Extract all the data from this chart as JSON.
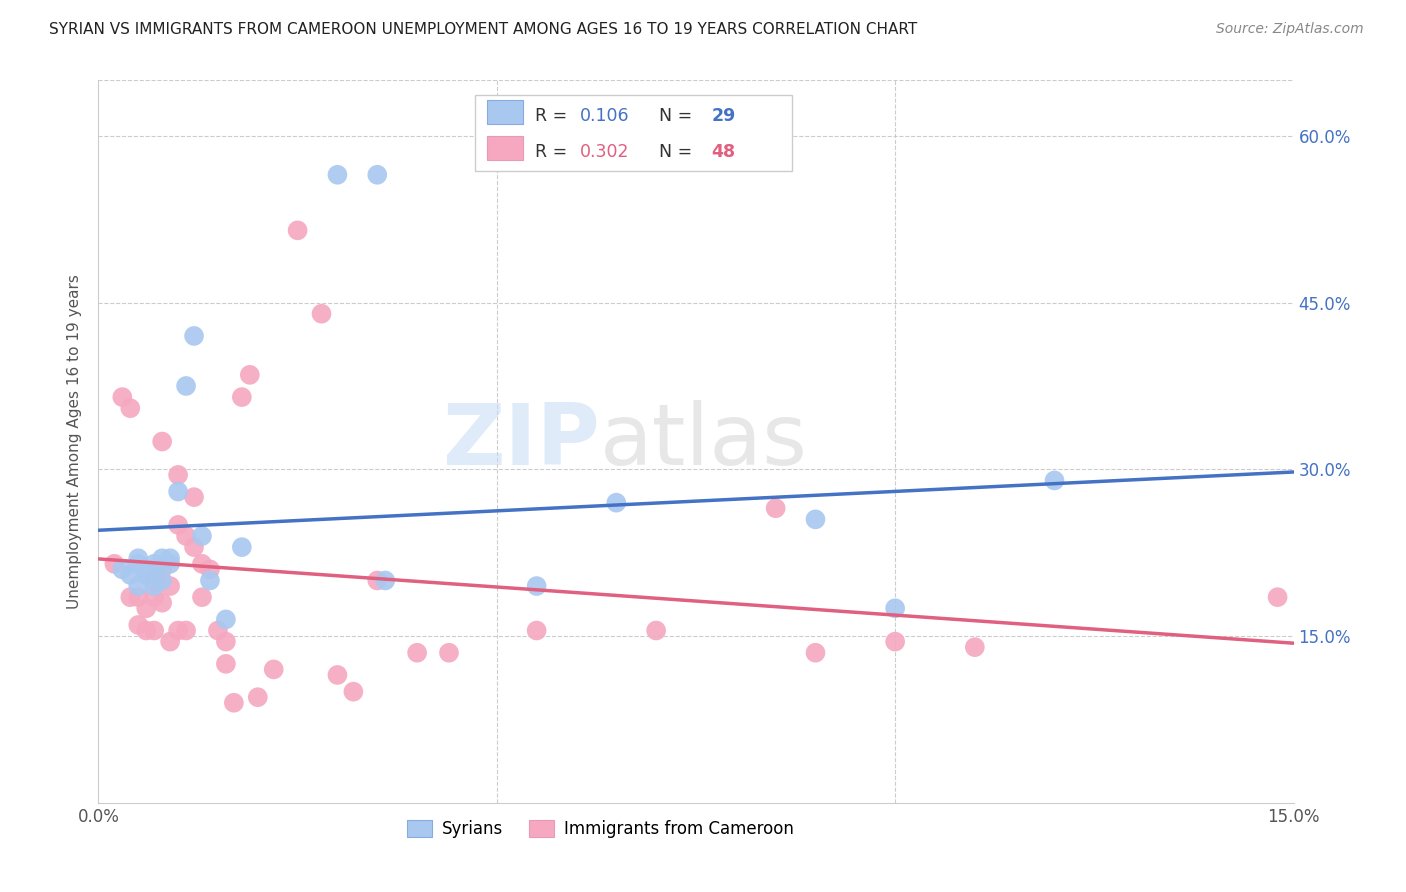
{
  "title": "SYRIAN VS IMMIGRANTS FROM CAMEROON UNEMPLOYMENT AMONG AGES 16 TO 19 YEARS CORRELATION CHART",
  "source": "Source: ZipAtlas.com",
  "ylabel": "Unemployment Among Ages 16 to 19 years",
  "xlim": [
    0.0,
    0.15
  ],
  "ylim": [
    0.0,
    0.65
  ],
  "watermark": "ZIPatlas",
  "legend_blue_r": "0.106",
  "legend_blue_n": "29",
  "legend_pink_r": "0.302",
  "legend_pink_n": "48",
  "legend_blue_label": "Syrians",
  "legend_pink_label": "Immigrants from Cameroon",
  "blue_color": "#A8C8F0",
  "pink_color": "#F5A8C0",
  "trendline_blue": "#4472C4",
  "trendline_pink": "#E06080",
  "background_color": "#FFFFFF",
  "grid_color": "#CCCCCC",
  "title_color": "#222222",
  "source_color": "#888888",
  "right_tick_color": "#4472C4",
  "blue_r_color": "#4472C4",
  "blue_n_color": "#4472C4",
  "pink_r_color": "#E06080",
  "pink_n_color": "#E06080",
  "blue_x": [
    0.003,
    0.004,
    0.005,
    0.005,
    0.005,
    0.006,
    0.006,
    0.007,
    0.007,
    0.007,
    0.008,
    0.008,
    0.009,
    0.009,
    0.01,
    0.011,
    0.012,
    0.013,
    0.014,
    0.016,
    0.018,
    0.03,
    0.035,
    0.036,
    0.055,
    0.065,
    0.09,
    0.1,
    0.12
  ],
  "blue_y": [
    0.21,
    0.205,
    0.195,
    0.215,
    0.22,
    0.205,
    0.21,
    0.195,
    0.21,
    0.215,
    0.22,
    0.2,
    0.215,
    0.22,
    0.28,
    0.375,
    0.42,
    0.24,
    0.2,
    0.165,
    0.23,
    0.565,
    0.565,
    0.2,
    0.195,
    0.27,
    0.255,
    0.175,
    0.29
  ],
  "pink_x": [
    0.002,
    0.003,
    0.004,
    0.004,
    0.005,
    0.005,
    0.006,
    0.006,
    0.007,
    0.007,
    0.007,
    0.008,
    0.008,
    0.008,
    0.009,
    0.009,
    0.01,
    0.01,
    0.01,
    0.011,
    0.011,
    0.012,
    0.012,
    0.013,
    0.013,
    0.014,
    0.015,
    0.016,
    0.016,
    0.017,
    0.018,
    0.019,
    0.02,
    0.022,
    0.025,
    0.028,
    0.03,
    0.032,
    0.035,
    0.04,
    0.044,
    0.055,
    0.07,
    0.085,
    0.09,
    0.1,
    0.11,
    0.148
  ],
  "pink_y": [
    0.215,
    0.365,
    0.355,
    0.185,
    0.185,
    0.16,
    0.175,
    0.155,
    0.2,
    0.185,
    0.155,
    0.325,
    0.21,
    0.18,
    0.195,
    0.145,
    0.295,
    0.25,
    0.155,
    0.24,
    0.155,
    0.275,
    0.23,
    0.215,
    0.185,
    0.21,
    0.155,
    0.145,
    0.125,
    0.09,
    0.365,
    0.385,
    0.095,
    0.12,
    0.515,
    0.44,
    0.115,
    0.1,
    0.2,
    0.135,
    0.135,
    0.155,
    0.155,
    0.265,
    0.135,
    0.145,
    0.14,
    0.185
  ]
}
